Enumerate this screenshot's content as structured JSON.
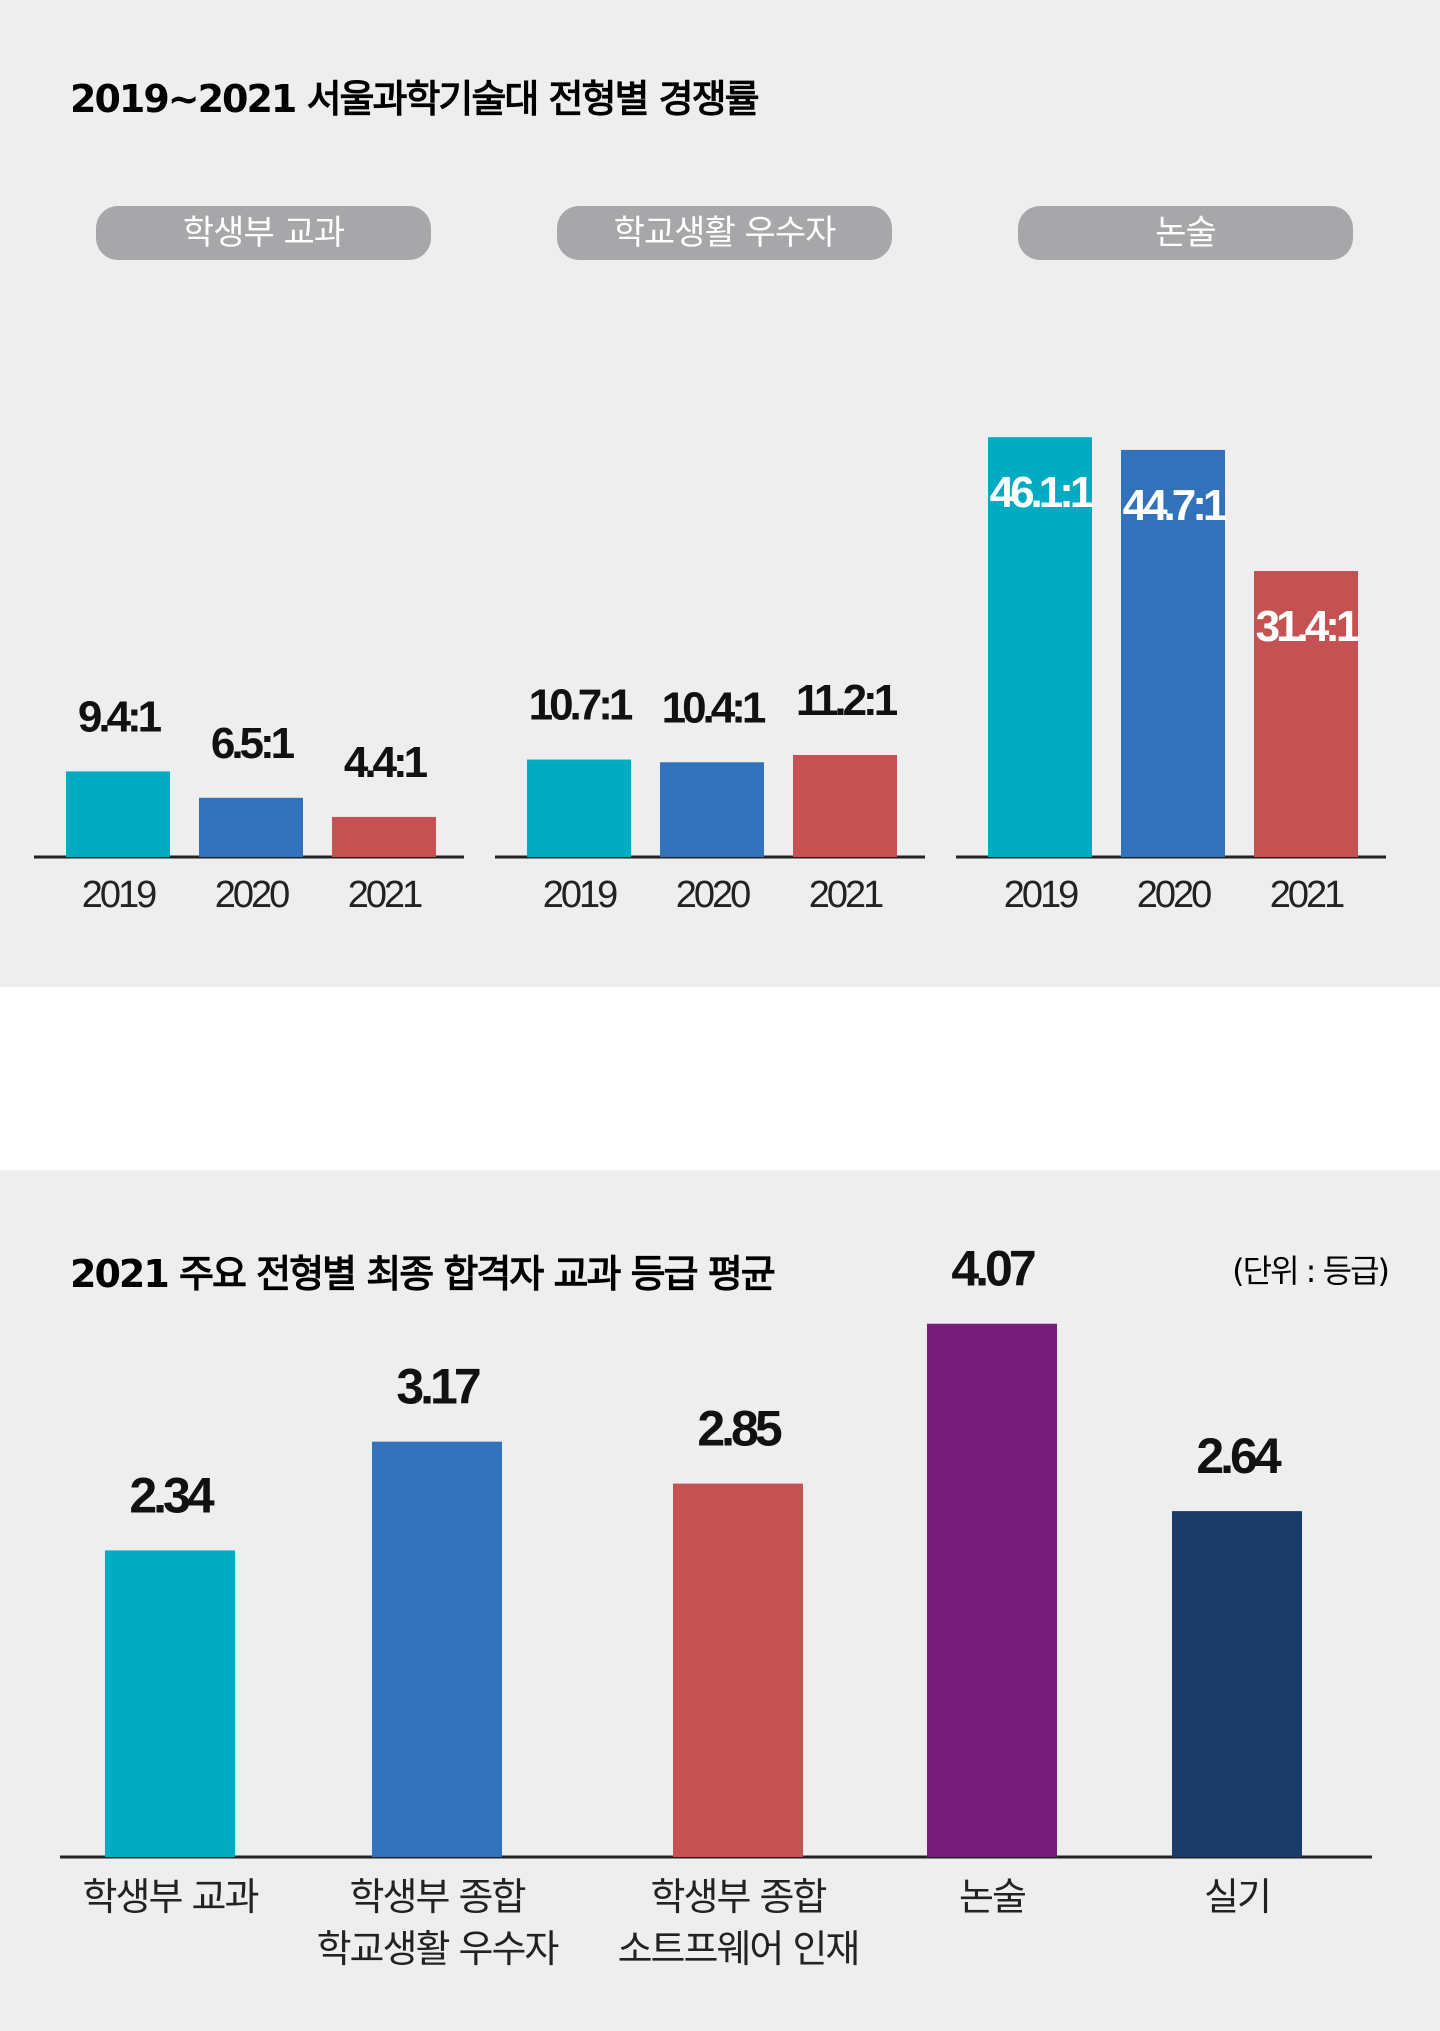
{
  "chart_data": [
    {
      "type": "bar",
      "title": "2019~2021 서울과학기술대 전형별 경쟁률",
      "groups": [
        {
          "name": "학생부 교과",
          "years": [
            "2019",
            "2020",
            "2021"
          ],
          "values": [
            9.4,
            6.5,
            4.4
          ],
          "labels": [
            "9.4:1",
            "6.5:1",
            "4.4:1"
          ]
        },
        {
          "name": "학교생활 우수자",
          "years": [
            "2019",
            "2020",
            "2021"
          ],
          "values": [
            10.7,
            10.4,
            11.2
          ],
          "labels": [
            "10.7:1",
            "10.4:1",
            "11.2:1"
          ]
        },
        {
          "name": "논술",
          "years": [
            "2019",
            "2020",
            "2021"
          ],
          "values": [
            46.1,
            44.7,
            31.4
          ],
          "labels": [
            "46.1:1",
            "44.7:1",
            "31.4:1"
          ]
        }
      ],
      "year_colors": [
        "#00acc1",
        "#3272bb",
        "#c55253"
      ],
      "ylim": [
        0,
        56
      ]
    },
    {
      "type": "bar",
      "title": "2021 주요 전형별 최종 합격자 교과 등급 평균",
      "unit_note": "(단위 : 등급)",
      "categories": [
        [
          "학생부 교과"
        ],
        [
          "학생부 종합",
          "학교생활 우수자"
        ],
        [
          "학생부 종합",
          "소트프웨어 인재"
        ],
        [
          "논술"
        ],
        [
          "실기"
        ]
      ],
      "values": [
        2.34,
        3.17,
        2.85,
        4.07,
        2.64
      ],
      "labels": [
        "2.34",
        "3.17",
        "2.85",
        "4.07",
        "2.64"
      ],
      "colors": [
        "#00acc1",
        "#3272bb",
        "#c55253",
        "#771c78",
        "#1b3b68"
      ],
      "ylim": [
        0,
        4.9
      ]
    }
  ]
}
